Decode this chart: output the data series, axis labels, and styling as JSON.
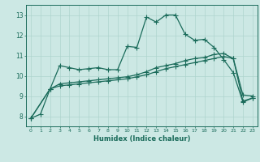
{
  "xlabel": "Humidex (Indice chaleur)",
  "bg_color": "#cce8e4",
  "line_color": "#1a6b5a",
  "grid_color": "#aed4ce",
  "xlim": [
    -0.5,
    23.5
  ],
  "ylim": [
    7.5,
    13.5
  ],
  "yticks": [
    8,
    9,
    10,
    11,
    12,
    13
  ],
  "xticks": [
    0,
    1,
    2,
    3,
    4,
    5,
    6,
    7,
    8,
    9,
    10,
    11,
    12,
    13,
    14,
    15,
    16,
    17,
    18,
    19,
    20,
    21,
    22,
    23
  ],
  "line1_x": [
    0,
    1,
    2,
    3,
    4,
    5,
    6,
    7,
    8,
    9,
    10,
    11,
    12,
    13,
    14,
    15,
    16,
    17,
    18,
    19,
    20,
    21,
    22,
    23
  ],
  "line1_y": [
    7.9,
    8.1,
    9.35,
    10.5,
    10.4,
    10.3,
    10.35,
    10.4,
    10.3,
    10.3,
    11.45,
    11.4,
    12.9,
    12.65,
    13.0,
    13.0,
    12.05,
    11.75,
    11.8,
    11.4,
    10.8,
    10.15,
    8.7,
    8.9
  ],
  "line2_x": [
    0,
    2,
    3,
    4,
    5,
    6,
    7,
    8,
    9,
    10,
    11,
    12,
    13,
    14,
    15,
    16,
    17,
    18,
    19,
    20,
    21,
    22,
    23
  ],
  "line2_y": [
    7.9,
    9.35,
    9.6,
    9.65,
    9.7,
    9.75,
    9.8,
    9.85,
    9.9,
    9.95,
    10.05,
    10.2,
    10.4,
    10.5,
    10.6,
    10.75,
    10.85,
    10.9,
    11.05,
    11.1,
    10.85,
    9.05,
    9.0
  ],
  "line3_x": [
    0,
    2,
    3,
    4,
    5,
    6,
    7,
    8,
    9,
    10,
    11,
    12,
    13,
    14,
    15,
    16,
    17,
    18,
    19,
    20,
    21,
    22,
    23
  ],
  "line3_y": [
    7.9,
    9.35,
    9.5,
    9.55,
    9.6,
    9.65,
    9.7,
    9.75,
    9.8,
    9.85,
    9.95,
    10.05,
    10.2,
    10.35,
    10.45,
    10.55,
    10.65,
    10.75,
    10.85,
    10.95,
    10.85,
    8.75,
    8.9
  ]
}
